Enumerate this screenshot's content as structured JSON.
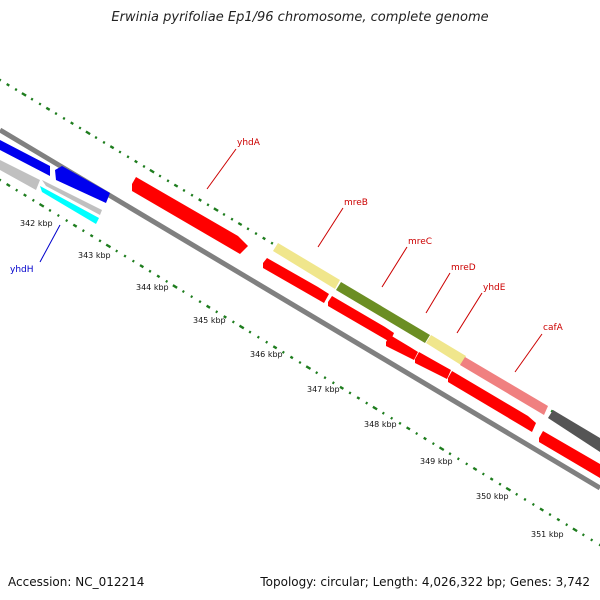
{
  "title": "Erwinia pyrifoliae Ep1/96 chromosome, complete genome",
  "footer": {
    "accession": "Accession: NC_012214",
    "summary": "Topology: circular; Length: 4,026,322 bp; Genes: 3,742"
  },
  "colors": {
    "backbone": "#808080",
    "gc_dots": "#1e7d1e",
    "cds_red": "#ff0000",
    "cds_blue": "#0000ee",
    "cds_gray": "#c0c0c0",
    "cds_cyan": "#00ffff",
    "cds_khaki": "#f0e68c",
    "cds_olive": "#6b8e23",
    "cds_salmon": "#f08080",
    "cds_dark": "#555555",
    "label_red": "#cc0000",
    "label_blue": "#0000cc"
  },
  "scale": {
    "unit": "kbp",
    "ticks": [
      {
        "value": 342,
        "label": "342 kbp"
      },
      {
        "value": 343,
        "label": "343 kbp"
      },
      {
        "value": 344,
        "label": "344 kbp"
      },
      {
        "value": 345,
        "label": "345 kbp"
      },
      {
        "value": 346,
        "label": "346 kbp"
      },
      {
        "value": 347,
        "label": "347 kbp"
      },
      {
        "value": 348,
        "label": "348 kbp"
      },
      {
        "value": 349,
        "label": "349 kbp"
      },
      {
        "value": 350,
        "label": "350 kbp"
      },
      {
        "value": 351,
        "label": "351 kbp"
      }
    ]
  },
  "genes": [
    {
      "name": "yhdA",
      "label_color": "red"
    },
    {
      "name": "mreB",
      "label_color": "red"
    },
    {
      "name": "mreC",
      "label_color": "red"
    },
    {
      "name": "mreD",
      "label_color": "red"
    },
    {
      "name": "yhdE",
      "label_color": "red"
    },
    {
      "name": "cafA",
      "label_color": "red"
    },
    {
      "name": "yhdH",
      "label_color": "blue"
    }
  ]
}
